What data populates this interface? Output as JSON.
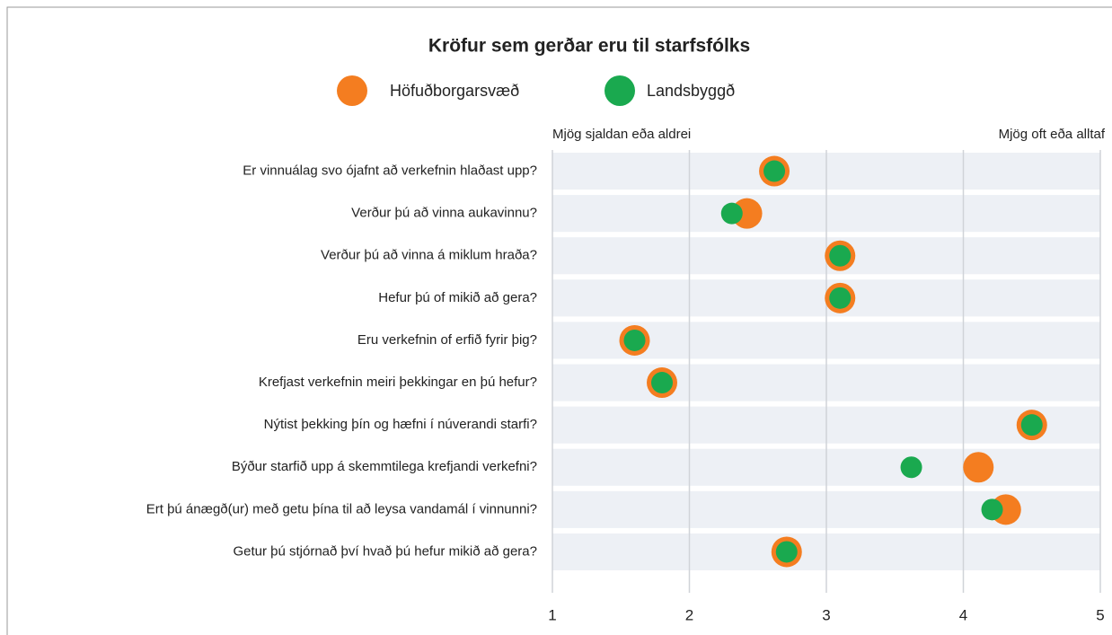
{
  "chart_data": {
    "type": "dot",
    "title": "Kröfur sem gerðar eru til starfsfólks",
    "annotations": [
      "Mjög sjaldan eða aldrei",
      "Mjög oft eða alltaf"
    ],
    "categories": [
      "Er vinnuálag svo ójafnt að verkefnin hlaðast upp?",
      "Verður þú að vinna aukavinnu?",
      "Verður þú að vinna á miklum hraða?",
      "Hefur þú of mikið að gera?",
      "Eru verkefnin of erfið fyrir þig?",
      "Krefjast verkefnin meiri þekkingar en þú hefur?",
      "Nýtist þekking þín og hæfni í núverandi starfi?",
      "Býður starfið upp á skemmtilega krefjandi verkefni?",
      "Ert þú ánægð(ur) með getu þína til að leysa vandamál í vinnunni?",
      "Getur þú stjórnað því hvað þú hefur mikið að gera?"
    ],
    "series": [
      {
        "name": "Höfuðborgarsvæð",
        "color": "#f47d20",
        "values": [
          2.62,
          2.42,
          3.1,
          3.1,
          1.6,
          1.8,
          4.5,
          4.11,
          4.31,
          2.71
        ]
      },
      {
        "name": "Landsbyggð",
        "color": "#1aa94f",
        "values": [
          2.62,
          2.31,
          3.1,
          3.1,
          1.6,
          1.8,
          4.5,
          3.62,
          4.21,
          2.71
        ]
      }
    ],
    "xlim": [
      1,
      5
    ],
    "xticks": [
      1,
      2,
      3,
      4,
      5
    ],
    "grid": true,
    "legend": "top"
  }
}
